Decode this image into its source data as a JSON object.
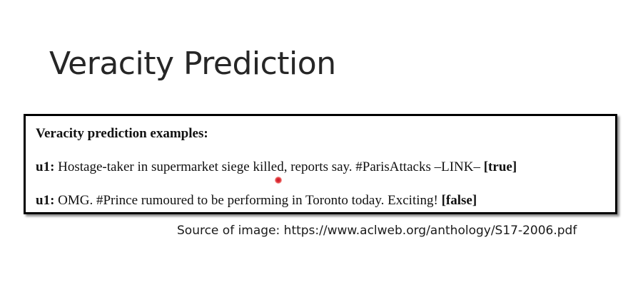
{
  "slide": {
    "title": "Veracity Prediction"
  },
  "figure": {
    "heading": "Veracity prediction examples:",
    "examples": [
      {
        "id": "u1:",
        "text": " Hostage-taker in supermarket siege killed, reports say. #ParisAttacks –LINK– ",
        "label": "[true]"
      },
      {
        "id": "u1:",
        "text": " OMG. #Prince rumoured to be performing in Toronto today. Exciting! ",
        "label": "[false]"
      }
    ]
  },
  "caption": {
    "source": "Source of image: https://www.aclweb.org/anthology/S17-2006.pdf"
  },
  "colors": {
    "cursor_highlight": "#d42b2b",
    "border": "#000000",
    "title_text": "#262626"
  }
}
